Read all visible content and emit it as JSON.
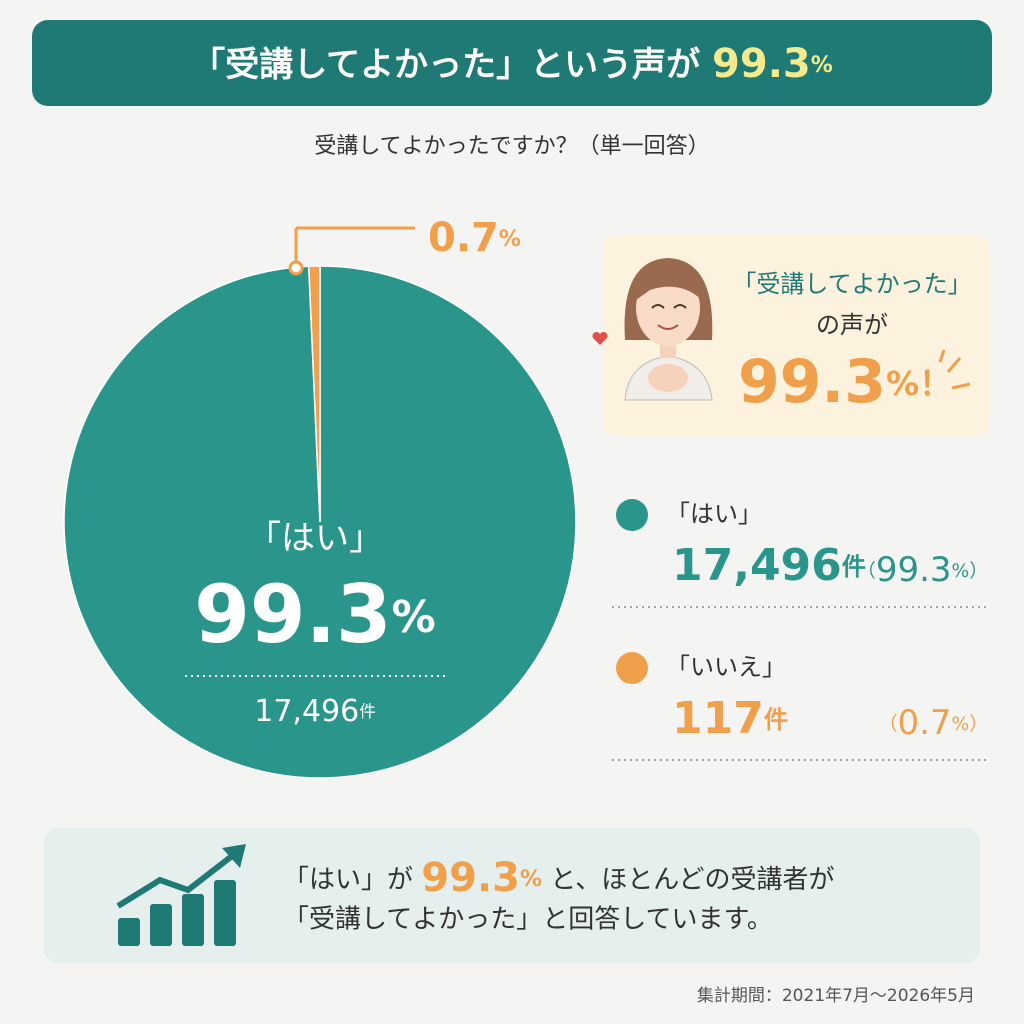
{
  "header": {
    "title": "「受講してよかった」という声が",
    "title_value": "99.3%"
  },
  "question": "受講してよかったですか？（単一回答）",
  "chart_data": {
    "type": "pie",
    "categories": [
      "「はい」",
      "「いいえ」"
    ],
    "values": [
      99.3,
      0.7
    ],
    "value_labels": [
      "99.3%",
      "0.7%"
    ],
    "count_labels": [
      "17,496件",
      "117件"
    ],
    "legend_labels": [
      "（99.3%）",
      "（0.7%）"
    ],
    "colors": [
      "#2a958b",
      "#f0a04b"
    ]
  },
  "callout": {
    "line1": "「受講してよかった」",
    "line2": "の声が",
    "value": "99.3%！"
  },
  "summary": {
    "line1_start": "「はい」が",
    "line1_value": "99.3%",
    "line1_end": "と、ほとんどの受講者が",
    "line2": "「受講してよかった」と回答しています。"
  },
  "footer": "集計期間：2021年7月〜2026年5月"
}
